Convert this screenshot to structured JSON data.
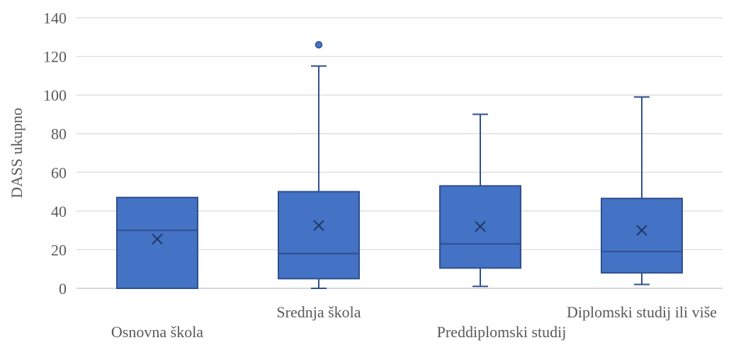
{
  "chart_data": {
    "type": "box",
    "title": "",
    "xlabel": "",
    "ylabel": "DASS ukupno",
    "ylim": [
      0,
      140
    ],
    "yticks": [
      0,
      20,
      40,
      60,
      80,
      100,
      120,
      140
    ],
    "grid": true,
    "legend": "none",
    "color": "#4472C4",
    "edge_color": "#2F4F8F",
    "categories": [
      "Osnovna škola",
      "Srednja škola",
      "Preddiplomski studij",
      "Diplomski studij ili više"
    ],
    "boxes": [
      {
        "category": "Osnovna škola",
        "min": 0,
        "q1": 0,
        "median": 30,
        "q3": 47,
        "max": 47,
        "mean": 25.5,
        "outliers": []
      },
      {
        "category": "Srednja škola",
        "min": 0,
        "q1": 5,
        "median": 18,
        "q3": 50,
        "max": 115,
        "mean": 32.5,
        "outliers": [
          126
        ]
      },
      {
        "category": "Preddiplomski studij",
        "min": 1,
        "q1": 10.5,
        "median": 23,
        "q3": 53,
        "max": 90,
        "mean": 32,
        "outliers": []
      },
      {
        "category": "Diplomski studij ili više",
        "min": 2,
        "q1": 8,
        "median": 19,
        "q3": 46.5,
        "max": 99,
        "mean": 30,
        "outliers": []
      }
    ]
  }
}
